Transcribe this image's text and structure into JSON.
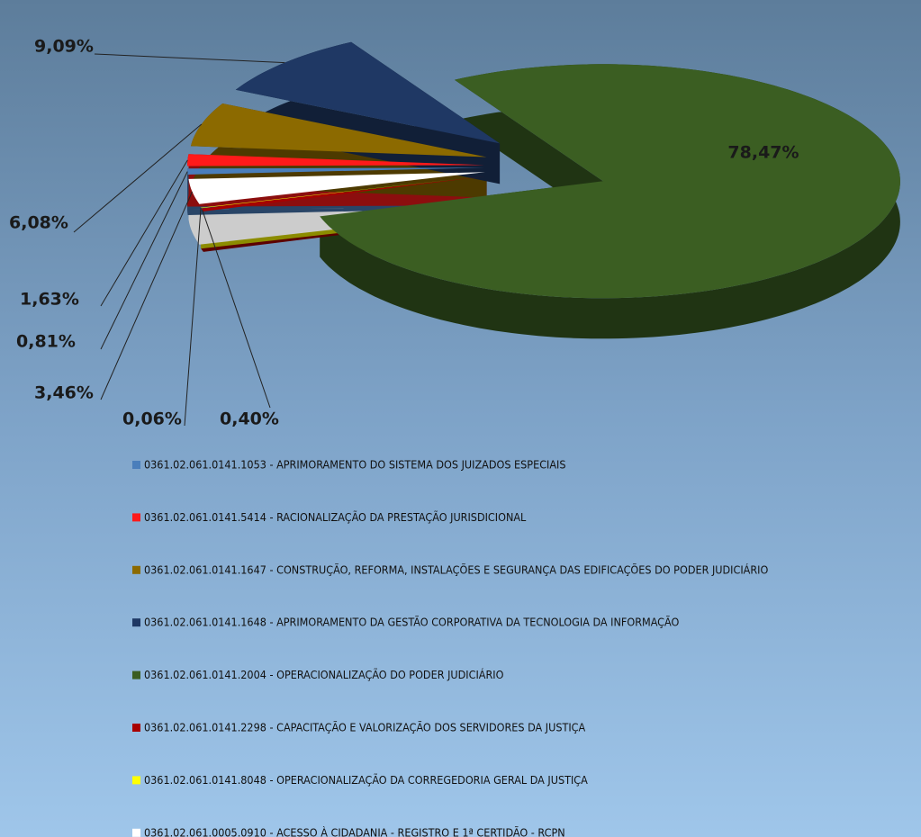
{
  "chart_data": {
    "type": "pie",
    "categories": [
      "0361.02.061.0141.1053 - APRIMORAMENTO DO SISTEMA DOS JUIZADOS ESPECIAIS",
      "0361.02.061.0141.5414 - RACIONALIZAÇÃO DA PRESTAÇÃO JURISDICIONAL",
      "0361.02.061.0141.1647 - CONSTRUÇÃO, REFORMA, INSTALAÇÕES E SEGURANÇA DAS EDIFICAÇÕES DO PODER JUDICIÁRIO",
      "0361.02.061.0141.1648 - APRIMORAMENTO DA GESTÃO CORPORATIVA DA TECNOLOGIA DA INFORMAÇÃO",
      "0361.02.061.0141.2004 - OPERACIONALIZAÇÃO DO PODER JUDICIÁRIO",
      "0361.02.061.0141.2298 - CAPACITAÇÃO E VALORIZAÇÃO DOS SERVIDORES DA JUSTIÇA",
      "0361.02.061.0141.8048 - OPERACIONALIZAÇÃO DA CORREGEDORIA GERAL DA JUSTIÇA",
      "0361.02.061.0005.0910 - ACESSO À CIDADANIA - REGISTRO E 1ª CERTIDÃO - RCPN"
    ],
    "values": [
      0.81,
      1.63,
      6.08,
      9.09,
      78.47,
      0.4,
      0.06,
      3.46
    ],
    "value_labels": [
      "0,81%",
      "1,63%",
      "6,08%",
      "9,09%",
      "78,47%",
      "0,40%",
      "0,06%",
      "3,46%"
    ],
    "colors": [
      "#4a7ebb",
      "#ff1a1a",
      "#8c6a00",
      "#1f3864",
      "#3b5e22",
      "#a80000",
      "#ffff00",
      "#ffffff"
    ],
    "legend": "bottom"
  }
}
